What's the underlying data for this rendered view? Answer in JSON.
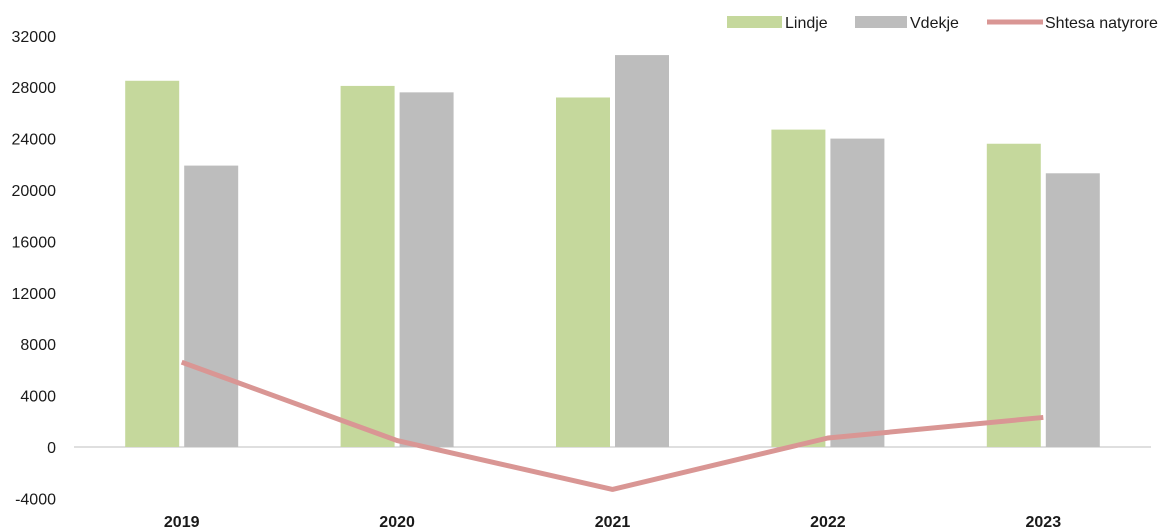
{
  "chart_data": {
    "type": "bar",
    "categories": [
      "2019",
      "2020",
      "2021",
      "2022",
      "2023"
    ],
    "series": [
      {
        "name": "Lindje",
        "type": "bar",
        "color": "#c5d89c",
        "values": [
          28500,
          28100,
          27200,
          24700,
          23600
        ]
      },
      {
        "name": "Vdekje",
        "type": "bar",
        "color": "#bdbdbd",
        "values": [
          21900,
          27600,
          30500,
          24000,
          21300
        ]
      },
      {
        "name": "Shtesa natyrore",
        "type": "line",
        "color": "#d99694",
        "values": [
          6600,
          500,
          -3300,
          700,
          2300
        ]
      }
    ],
    "y_ticks": [
      "-4000",
      "0",
      "4000",
      "8000",
      "12000",
      "16000",
      "20000",
      "24000",
      "28000",
      "32000"
    ],
    "ylim": [
      -4000,
      32000
    ],
    "grid": false,
    "legend": "top-right",
    "title": "",
    "xlabel": "",
    "ylabel": ""
  }
}
